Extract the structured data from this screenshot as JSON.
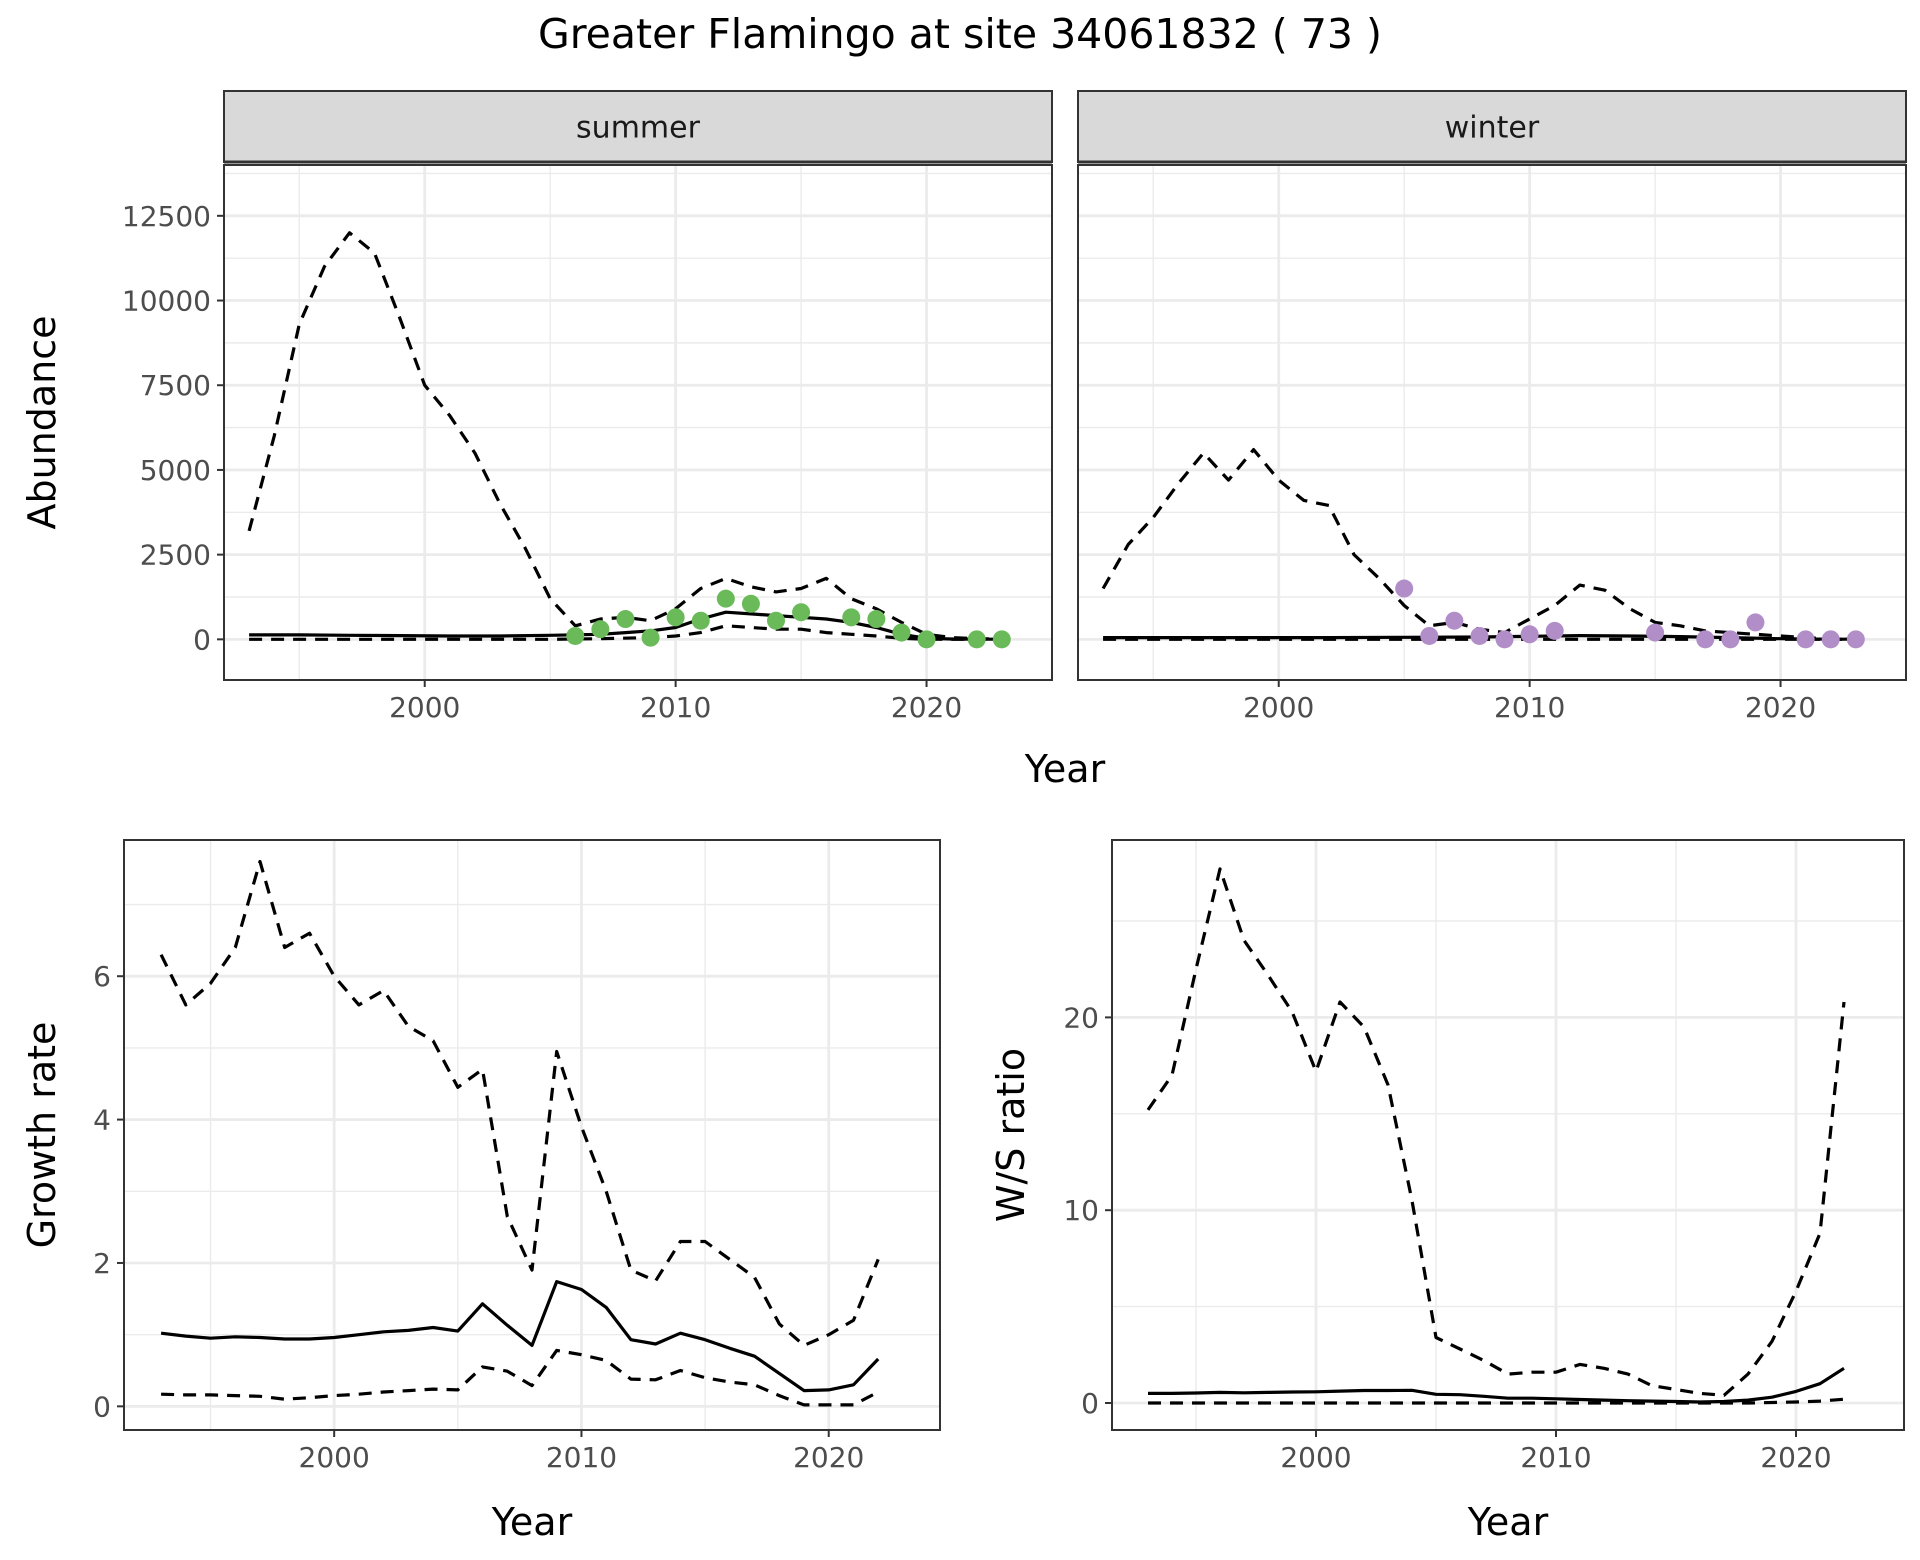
{
  "title": "Greater Flamingo at site 34061832 ( 73 )",
  "colors": {
    "summer_points": "#6aba5a",
    "winter_points": "#b28ec9",
    "lines": "#000000",
    "strip": "#d9d9d9",
    "grid": "#ebebeb"
  },
  "chart_data": [
    {
      "type": "line",
      "panel": "summer",
      "strip_label": "summer",
      "ylabel": "Abundance",
      "xlabel": "Year",
      "xlim": [
        1992,
        2025
      ],
      "ylim": [
        -1200,
        14000
      ],
      "xticks": [
        2000,
        2010,
        2020
      ],
      "yticks": [
        0,
        2500,
        5000,
        7500,
        10000,
        12500
      ],
      "grid": true,
      "series": [
        {
          "style": "solid",
          "x": [
            1993,
            1995,
            1997,
            1999,
            2001,
            2003,
            2005,
            2007,
            2008,
            2009,
            2010,
            2011,
            2012,
            2013,
            2014,
            2015,
            2016,
            2017,
            2018,
            2019,
            2020,
            2021,
            2022,
            2023
          ],
          "y": [
            130,
            130,
            120,
            110,
            100,
            100,
            120,
            150,
            200,
            250,
            350,
            600,
            800,
            750,
            700,
            650,
            600,
            500,
            350,
            150,
            30,
            10,
            5,
            5
          ]
        },
        {
          "style": "dashed",
          "x": [
            1993,
            1994,
            1995,
            1996,
            1997,
            1998,
            1999,
            2000,
            2001,
            2002,
            2003,
            2004,
            2005,
            2006,
            2007,
            2008,
            2009,
            2010,
            2011,
            2012,
            2013,
            2014,
            2015,
            2016,
            2017,
            2018,
            2019,
            2020,
            2021,
            2022,
            2023
          ],
          "y": [
            3200,
            6000,
            9300,
            11000,
            12000,
            11400,
            9500,
            7500,
            6600,
            5500,
            4000,
            2700,
            1200,
            400,
            600,
            650,
            550,
            900,
            1500,
            1800,
            1550,
            1400,
            1500,
            1800,
            1200,
            900,
            500,
            150,
            50,
            20,
            10
          ]
        },
        {
          "style": "dashed",
          "x": [
            1993,
            1995,
            2000,
            2005,
            2007,
            2009,
            2010,
            2011,
            2012,
            2013,
            2014,
            2015,
            2016,
            2017,
            2018,
            2019,
            2020,
            2021,
            2022,
            2023
          ],
          "y": [
            0,
            0,
            0,
            0,
            20,
            50,
            100,
            200,
            400,
            350,
            300,
            300,
            200,
            150,
            100,
            30,
            5,
            0,
            0,
            0
          ]
        }
      ],
      "points": {
        "x": [
          2006,
          2007,
          2008,
          2009,
          2010,
          2011,
          2012,
          2013,
          2014,
          2015,
          2017,
          2018,
          2019,
          2020,
          2022,
          2023
        ],
        "y": [
          100,
          300,
          600,
          50,
          650,
          550,
          1200,
          1050,
          550,
          800,
          650,
          600,
          200,
          0,
          0,
          0
        ]
      }
    },
    {
      "type": "line",
      "panel": "winter",
      "strip_label": "winter",
      "ylabel": "",
      "xlabel": "Year",
      "xlim": [
        1992,
        2025
      ],
      "ylim": [
        -1200,
        14000
      ],
      "xticks": [
        2000,
        2010,
        2020
      ],
      "yticks": [
        0,
        2500,
        5000,
        7500,
        10000,
        12500
      ],
      "grid": true,
      "series": [
        {
          "style": "solid",
          "x": [
            1993,
            1996,
            1999,
            2002,
            2005,
            2008,
            2010,
            2012,
            2014,
            2016,
            2018,
            2020,
            2022,
            2023
          ],
          "y": [
            50,
            50,
            50,
            50,
            60,
            70,
            90,
            110,
            100,
            80,
            50,
            20,
            5,
            5
          ]
        },
        {
          "style": "dashed",
          "x": [
            1993,
            1994,
            1995,
            1996,
            1997,
            1998,
            1999,
            2000,
            2001,
            2002,
            2003,
            2004,
            2005,
            2006,
            2007,
            2008,
            2009,
            2010,
            2011,
            2012,
            2013,
            2014,
            2015,
            2016,
            2017,
            2018,
            2019,
            2020,
            2021,
            2022,
            2023
          ],
          "y": [
            1500,
            2800,
            3600,
            4600,
            5500,
            4700,
            5600,
            4700,
            4100,
            3950,
            2500,
            1800,
            1000,
            400,
            500,
            300,
            200,
            600,
            1000,
            1600,
            1450,
            900,
            500,
            400,
            250,
            200,
            150,
            100,
            50,
            20,
            10
          ]
        },
        {
          "style": "dashed",
          "x": [
            1993,
            2000,
            2005,
            2010,
            2015,
            2020,
            2023
          ],
          "y": [
            0,
            0,
            0,
            0,
            0,
            0,
            0
          ]
        }
      ],
      "points": {
        "x": [
          2005,
          2006,
          2007,
          2008,
          2009,
          2010,
          2011,
          2015,
          2017,
          2018,
          2019,
          2021,
          2022,
          2023
        ],
        "y": [
          1500,
          100,
          550,
          100,
          0,
          150,
          250,
          200,
          0,
          0,
          500,
          0,
          0,
          0
        ]
      }
    },
    {
      "type": "line",
      "panel": "growth",
      "ylabel": "Growth rate",
      "xlabel": "Year",
      "xlim": [
        1991.5,
        2024.5
      ],
      "ylim": [
        -0.33,
        7.9
      ],
      "xticks": [
        2000,
        2010,
        2020
      ],
      "yticks": [
        0,
        2,
        4,
        6
      ],
      "grid": true,
      "series": [
        {
          "style": "solid",
          "x": [
            1993,
            1994,
            1995,
            1996,
            1997,
            1998,
            1999,
            2000,
            2001,
            2002,
            2003,
            2004,
            2005,
            2006,
            2007,
            2008,
            2009,
            2010,
            2011,
            2012,
            2013,
            2014,
            2015,
            2016,
            2017,
            2018,
            2019,
            2020,
            2021,
            2022
          ],
          "y": [
            1.02,
            0.98,
            0.95,
            0.97,
            0.96,
            0.94,
            0.94,
            0.96,
            1.0,
            1.04,
            1.06,
            1.1,
            1.05,
            1.43,
            1.13,
            0.85,
            1.74,
            1.63,
            1.38,
            0.93,
            0.87,
            1.02,
            0.93,
            0.81,
            0.7,
            0.46,
            0.22,
            0.23,
            0.3,
            0.66
          ]
        },
        {
          "style": "dashed",
          "x": [
            1993,
            1994,
            1995,
            1996,
            1997,
            1998,
            1999,
            2000,
            2001,
            2002,
            2003,
            2004,
            2005,
            2006,
            2007,
            2008,
            2009,
            2010,
            2011,
            2012,
            2013,
            2014,
            2015,
            2016,
            2017,
            2018,
            2019,
            2020,
            2021,
            2022
          ],
          "y": [
            6.3,
            5.6,
            5.9,
            6.4,
            7.6,
            6.4,
            6.6,
            6.0,
            5.6,
            5.8,
            5.3,
            5.1,
            4.45,
            4.7,
            2.65,
            1.9,
            4.95,
            3.9,
            3.0,
            1.9,
            1.75,
            2.3,
            2.3,
            2.05,
            1.8,
            1.15,
            0.85,
            1.0,
            1.2,
            2.05
          ]
        },
        {
          "style": "dashed",
          "x": [
            1993,
            1994,
            1995,
            1996,
            1997,
            1998,
            1999,
            2000,
            2001,
            2002,
            2003,
            2004,
            2005,
            2006,
            2007,
            2008,
            2009,
            2010,
            2011,
            2012,
            2013,
            2014,
            2015,
            2016,
            2017,
            2018,
            2019,
            2020,
            2021,
            2022
          ],
          "y": [
            0.17,
            0.16,
            0.16,
            0.15,
            0.14,
            0.1,
            0.12,
            0.15,
            0.17,
            0.2,
            0.22,
            0.24,
            0.23,
            0.55,
            0.49,
            0.29,
            0.78,
            0.72,
            0.64,
            0.38,
            0.37,
            0.5,
            0.4,
            0.34,
            0.3,
            0.15,
            0.02,
            0.02,
            0.02,
            0.2
          ]
        }
      ]
    },
    {
      "type": "line",
      "panel": "ws",
      "ylabel": "W/S ratio",
      "xlabel": "Year",
      "xlim": [
        1991.5,
        2024.5
      ],
      "ylim": [
        -1.4,
        29.2
      ],
      "xticks": [
        2000,
        2010,
        2020
      ],
      "yticks": [
        0,
        10,
        20
      ],
      "grid": true,
      "series": [
        {
          "style": "solid",
          "x": [
            1993,
            1994,
            1995,
            1996,
            1997,
            1998,
            1999,
            2000,
            2001,
            2002,
            2003,
            2004,
            2005,
            2006,
            2007,
            2008,
            2009,
            2010,
            2011,
            2012,
            2013,
            2014,
            2015,
            2016,
            2017,
            2018,
            2019,
            2020,
            2021,
            2022
          ],
          "y": [
            0.5,
            0.5,
            0.52,
            0.55,
            0.53,
            0.55,
            0.57,
            0.58,
            0.62,
            0.65,
            0.65,
            0.66,
            0.45,
            0.43,
            0.35,
            0.25,
            0.25,
            0.22,
            0.18,
            0.15,
            0.12,
            0.1,
            0.08,
            0.05,
            0.08,
            0.15,
            0.3,
            0.6,
            1.0,
            1.8
          ]
        },
        {
          "style": "dashed",
          "x": [
            1993,
            1994,
            1995,
            1996,
            1997,
            1998,
            1999,
            2000,
            2001,
            2002,
            2003,
            2004,
            2005,
            2006,
            2007,
            2008,
            2009,
            2010,
            2011,
            2012,
            2013,
            2014,
            2015,
            2016,
            2017,
            2018,
            2019,
            2020,
            2021,
            2022
          ],
          "y": [
            15.2,
            17.0,
            22.5,
            27.7,
            24.0,
            22.2,
            20.3,
            17.2,
            20.8,
            19.5,
            16.5,
            10.5,
            3.4,
            2.8,
            2.2,
            1.5,
            1.6,
            1.6,
            2.0,
            1.8,
            1.5,
            0.9,
            0.7,
            0.5,
            0.4,
            1.5,
            3.2,
            5.8,
            8.8,
            20.8
          ]
        },
        {
          "style": "dashed",
          "x": [
            1993,
            1995,
            2000,
            2005,
            2010,
            2015,
            2016,
            2018,
            2020,
            2021,
            2022
          ],
          "y": [
            0.0,
            0.0,
            0.0,
            0.0,
            0.0,
            0.0,
            0.0,
            0.0,
            0.05,
            0.1,
            0.2
          ]
        }
      ]
    }
  ]
}
